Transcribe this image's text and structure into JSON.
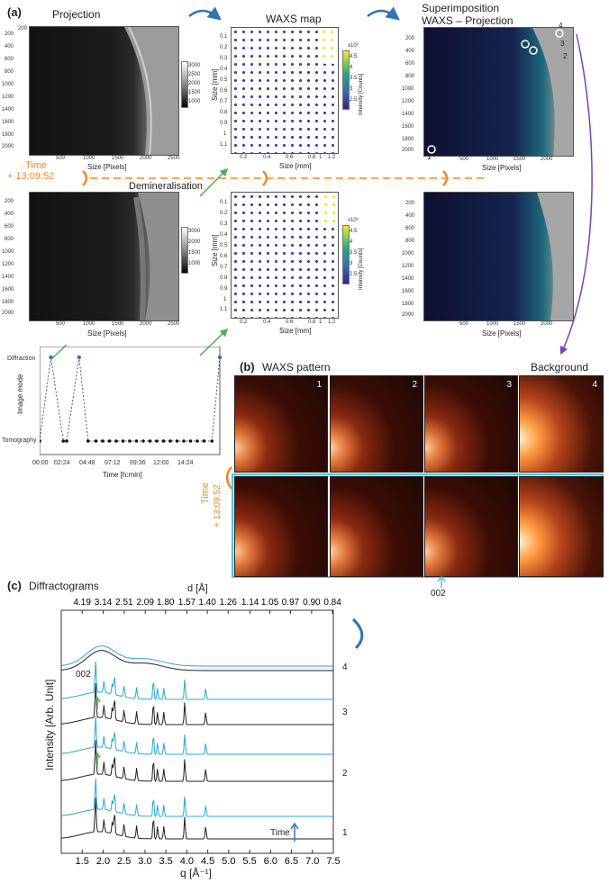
{
  "panel_a": {
    "letter": "(a)",
    "projection_title": "Projection",
    "waxs_map_title": "WAXS map",
    "superimposition_title_1": "Superimposition",
    "superimposition_title_2": "WAXS – Projection",
    "size_pixels": "Size [Pixels]",
    "size_mm": "Size [mm]",
    "intensity_label": "Intensity [Counts]",
    "time_label": "Time",
    "time_value": "+ 13:09:52",
    "demineralisation": "Demineralisation",
    "proj_y_ticks": [
      "200",
      "400",
      "600",
      "800",
      "1000",
      "1200",
      "1400",
      "1600",
      "1800",
      "2000"
    ],
    "proj_x_ticks": [
      "500",
      "1000",
      "1500",
      "2000",
      "2500"
    ],
    "gray_cb_ticks": [
      "3000",
      "2500",
      "2000",
      "1500",
      "1000"
    ],
    "map_y_ticks": [
      "0.1",
      "0.2",
      "0.3",
      "0.4",
      "0.5",
      "0.6",
      "0.7",
      "0.8",
      "0.9",
      "1",
      "1.1"
    ],
    "map_x_ticks": [
      "0.2",
      "0.4",
      "0.6",
      "0.8",
      "1",
      "1.2"
    ],
    "viridis_ticks": [
      "4.5",
      "4",
      "3.5",
      "3",
      "2.5"
    ],
    "exp_label": "x10³",
    "super_y_ticks": [
      "200",
      "400",
      "600",
      "800",
      "1000",
      "1200",
      "1400",
      "1600",
      "1800",
      "2000"
    ],
    "super_x_ticks": [
      "500",
      "1000",
      "1500",
      "2000"
    ],
    "point_labels": [
      "1",
      "2",
      "3",
      "4"
    ],
    "mode_chart": {
      "ylabel": "Image mode",
      "xlabel": "Time [h:min]",
      "categories": [
        "Diffraction",
        "Tomography"
      ],
      "x_ticks": [
        "00:00",
        "02:24",
        "04:48",
        "07:12",
        "09:36",
        "12:00",
        "14:24"
      ]
    }
  },
  "panel_b": {
    "letter": "(b)",
    "title": "WAXS pattern",
    "background": "Background",
    "labels": [
      "1",
      "2",
      "3",
      "4"
    ],
    "time_label": "Time",
    "time_value": "+ 13:09:52",
    "peak_label": "002"
  },
  "panel_c": {
    "letter": "(c)",
    "title": "Diffractograms",
    "d_label": "d [Å]",
    "ylabel": "Intensity [Arb. Unit]",
    "xlabel": "q [Å⁻¹]",
    "peak_label": "002",
    "time_label": "Time",
    "series_labels": [
      "1",
      "2",
      "3",
      "4"
    ]
  },
  "chart_data": [
    {
      "type": "scatter",
      "title": "",
      "xlabel": "Time [h:min]",
      "ylabel": "Image mode",
      "categories_y": [
        "Tomography",
        "Diffraction"
      ],
      "x_ticks": [
        "00:00",
        "02:24",
        "04:48",
        "07:12",
        "09:36",
        "12:00",
        "14:24"
      ],
      "xlim": [
        0,
        16
      ],
      "points": [
        {
          "t": 0.0,
          "mode": "Tomography"
        },
        {
          "t": 1.0,
          "mode": "Diffraction"
        },
        {
          "t": 2.1,
          "mode": "Tomography"
        },
        {
          "t": 2.4,
          "mode": "Tomography"
        },
        {
          "t": 3.5,
          "mode": "Diffraction"
        },
        {
          "t": 4.3,
          "mode": "Tomography"
        },
        {
          "t": 5.0,
          "mode": "Tomography"
        },
        {
          "t": 5.6,
          "mode": "Tomography"
        },
        {
          "t": 6.2,
          "mode": "Tomography"
        },
        {
          "t": 6.8,
          "mode": "Tomography"
        },
        {
          "t": 7.4,
          "mode": "Tomography"
        },
        {
          "t": 8.0,
          "mode": "Tomography"
        },
        {
          "t": 8.6,
          "mode": "Tomography"
        },
        {
          "t": 9.2,
          "mode": "Tomography"
        },
        {
          "t": 9.8,
          "mode": "Tomography"
        },
        {
          "t": 10.4,
          "mode": "Tomography"
        },
        {
          "t": 11.0,
          "mode": "Tomography"
        },
        {
          "t": 11.6,
          "mode": "Tomography"
        },
        {
          "t": 12.2,
          "mode": "Tomography"
        },
        {
          "t": 12.8,
          "mode": "Tomography"
        },
        {
          "t": 13.4,
          "mode": "Tomography"
        },
        {
          "t": 14.0,
          "mode": "Tomography"
        },
        {
          "t": 14.6,
          "mode": "Tomography"
        },
        {
          "t": 15.3,
          "mode": "Tomography"
        },
        {
          "t": 16.0,
          "mode": "Diffraction"
        }
      ]
    },
    {
      "type": "line",
      "title": "Diffractograms",
      "xlabel": "q [Å⁻¹]",
      "ylabel": "Intensity [Arb. Unit]",
      "x2label": "d [Å]",
      "xlim": [
        1.0,
        7.5
      ],
      "x_ticks": [
        "1.5",
        "2.0",
        "2.5",
        "3.0",
        "3.5",
        "4.0",
        "4.5",
        "5.0",
        "5.5",
        "6.0",
        "6.5",
        "7.0",
        "7.5"
      ],
      "x2_ticks": [
        "4.19",
        "3.14",
        "2.51",
        "2.09",
        "1.80",
        "1.57",
        "1.40",
        "1.26",
        "1.14",
        "1.05",
        "0.97",
        "0.90",
        "0.84"
      ],
      "series_labels": [
        "1",
        "2",
        "3",
        "4"
      ],
      "colors": {
        "before": "#2aa7d4",
        "after": "#222222"
      },
      "peaks_q": [
        1.82,
        2.02,
        2.22,
        2.27,
        2.5,
        2.8,
        3.2,
        3.3,
        3.45,
        3.95,
        4.45
      ]
    }
  ],
  "colors": {
    "accent_orange": "#f08a24",
    "arrow_blue": "#2e75b6",
    "arrow_green": "#4caf50",
    "arrow_purple": "#7b3fb5",
    "highlight_cyan": "#4cc3e6"
  }
}
